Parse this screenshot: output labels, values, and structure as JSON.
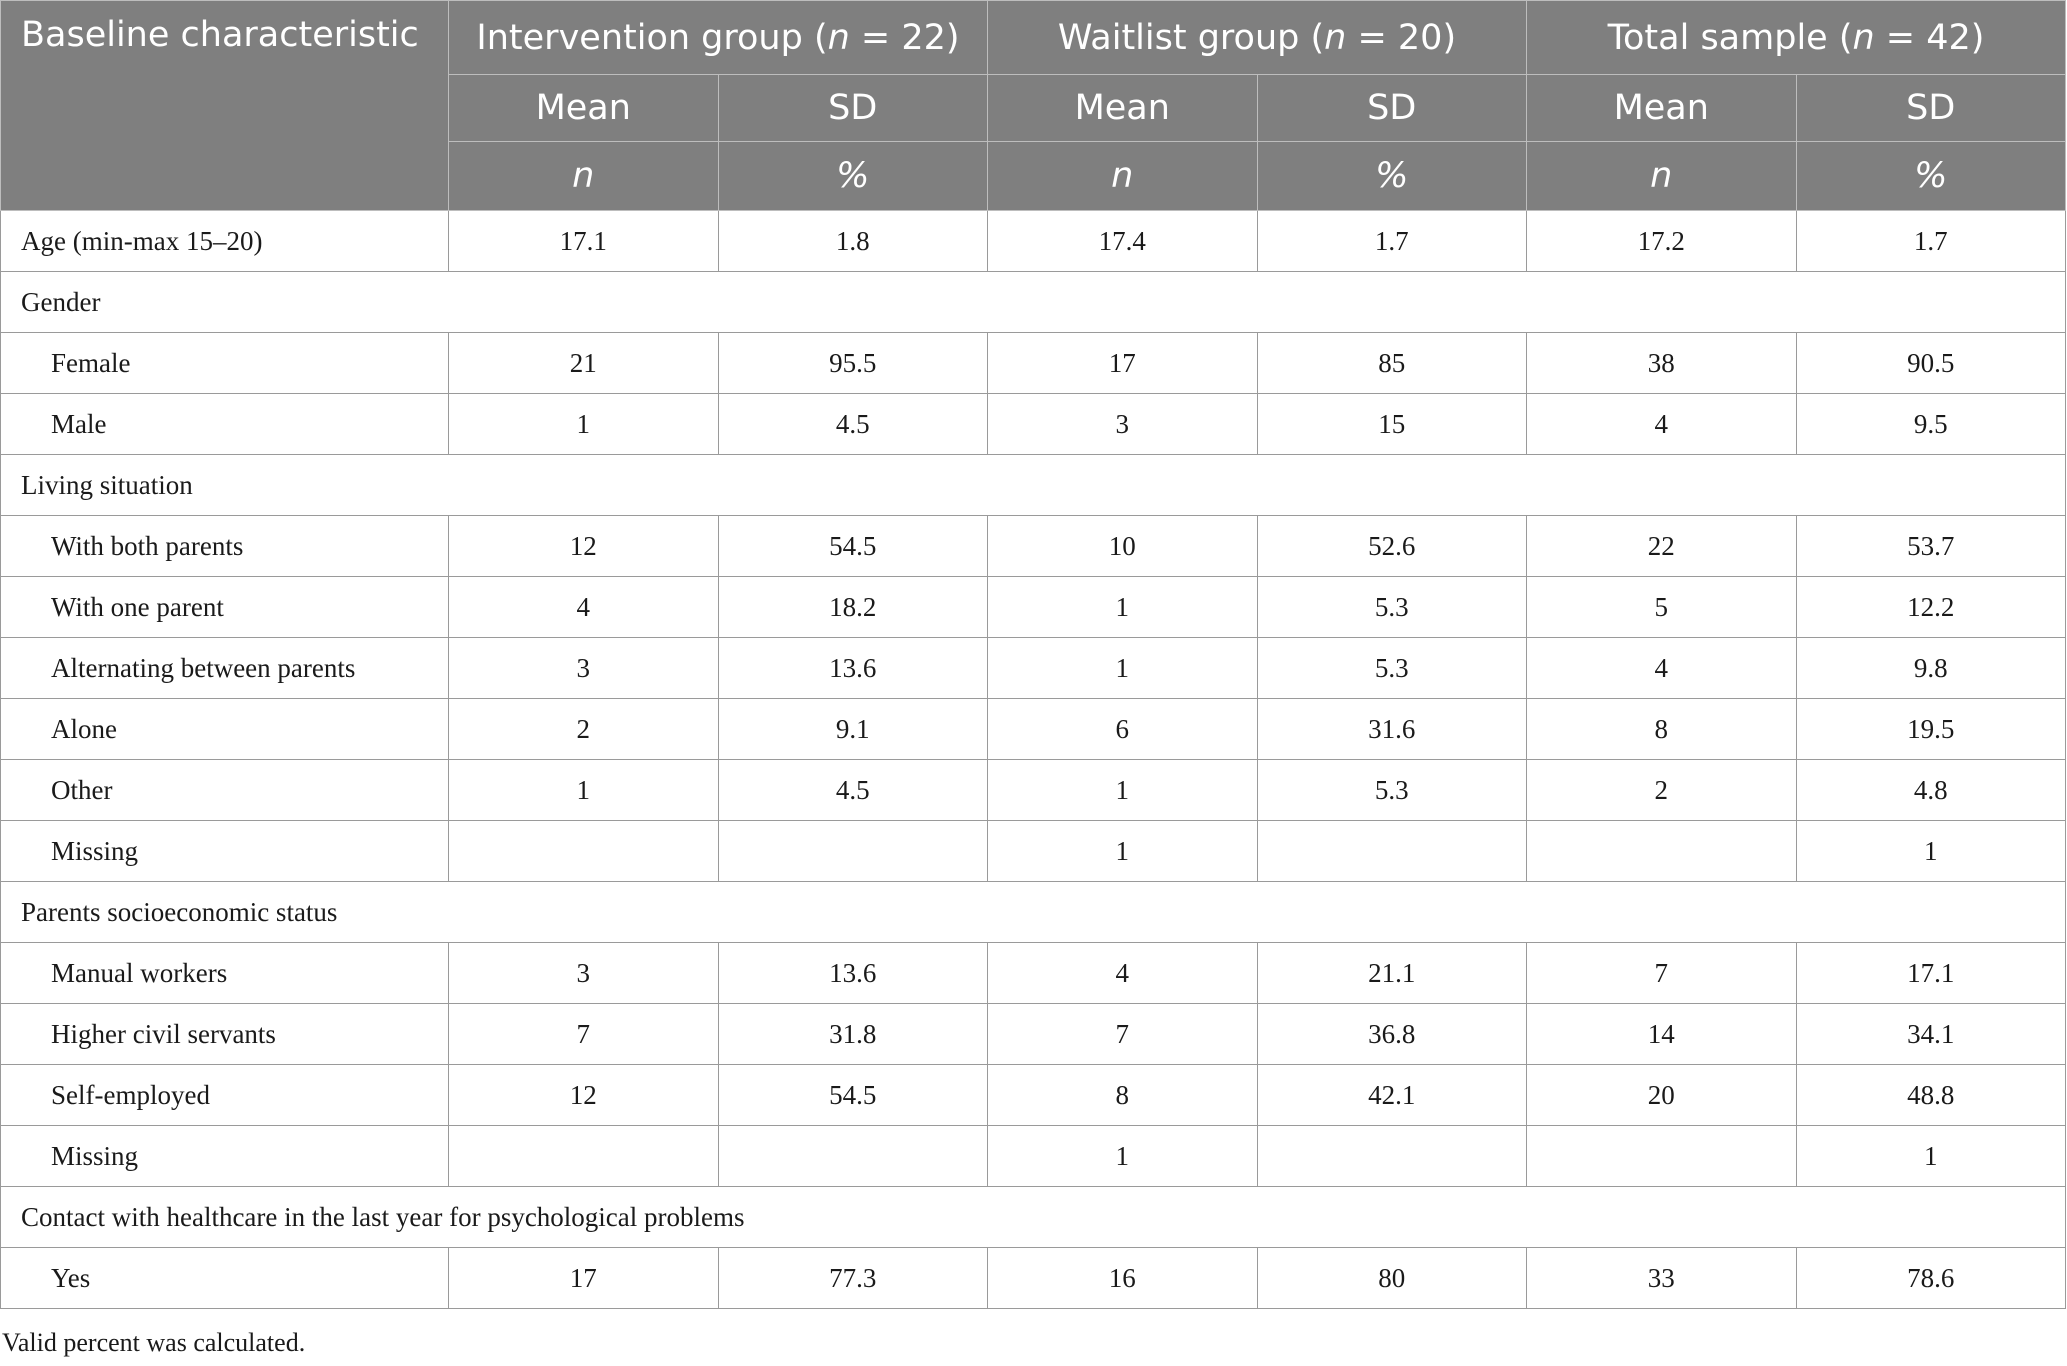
{
  "table": {
    "header": {
      "baseline_label": "Baseline characteristic",
      "groups": [
        {
          "label": "Intervention group",
          "n_text": "n",
          "n_value": " = 22"
        },
        {
          "label": "Waitlist group",
          "n_text": "n",
          "n_value": " = 20"
        },
        {
          "label": "Total sample",
          "n_text": "n",
          "n_value": " = 42"
        }
      ],
      "row2": [
        "Mean",
        "SD",
        "Mean",
        "SD",
        "Mean",
        "SD"
      ],
      "row3": [
        "n",
        "%",
        "n",
        "%",
        "n",
        "%"
      ]
    },
    "rows": [
      {
        "type": "data",
        "label": "Age (min-max 15–20)",
        "indent": false,
        "values": [
          "17.1",
          "1.8",
          "17.4",
          "1.7",
          "17.2",
          "1.7"
        ]
      },
      {
        "type": "section",
        "label": "Gender"
      },
      {
        "type": "data",
        "label": "Female",
        "indent": true,
        "values": [
          "21",
          "95.5",
          "17",
          "85",
          "38",
          "90.5"
        ]
      },
      {
        "type": "data",
        "label": "Male",
        "indent": true,
        "values": [
          "1",
          "4.5",
          "3",
          "15",
          "4",
          "9.5"
        ]
      },
      {
        "type": "section",
        "label": "Living situation"
      },
      {
        "type": "data",
        "label": "With both parents",
        "indent": true,
        "values": [
          "12",
          "54.5",
          "10",
          "52.6",
          "22",
          "53.7"
        ]
      },
      {
        "type": "data",
        "label": "With one parent",
        "indent": true,
        "values": [
          "4",
          "18.2",
          "1",
          "5.3",
          "5",
          "12.2"
        ]
      },
      {
        "type": "data",
        "label": "Alternating between parents",
        "indent": true,
        "values": [
          "3",
          "13.6",
          "1",
          "5.3",
          "4",
          "9.8"
        ]
      },
      {
        "type": "data",
        "label": "Alone",
        "indent": true,
        "values": [
          "2",
          "9.1",
          "6",
          "31.6",
          "8",
          "19.5"
        ]
      },
      {
        "type": "data",
        "label": "Other",
        "indent": true,
        "values": [
          "1",
          "4.5",
          "1",
          "5.3",
          "2",
          "4.8"
        ]
      },
      {
        "type": "data",
        "label": "Missing",
        "indent": true,
        "values": [
          "",
          "",
          "1",
          "",
          "",
          "1"
        ]
      },
      {
        "type": "section",
        "label": "Parents socioeconomic status"
      },
      {
        "type": "data",
        "label": "Manual workers",
        "indent": true,
        "values": [
          "3",
          "13.6",
          "4",
          "21.1",
          "7",
          "17.1"
        ]
      },
      {
        "type": "data",
        "label": "Higher civil servants",
        "indent": true,
        "values": [
          "7",
          "31.8",
          "7",
          "36.8",
          "14",
          "34.1"
        ]
      },
      {
        "type": "data",
        "label": "Self-employed",
        "indent": true,
        "values": [
          "12",
          "54.5",
          "8",
          "42.1",
          "20",
          "48.8"
        ]
      },
      {
        "type": "data",
        "label": "Missing",
        "indent": true,
        "values": [
          "",
          "",
          "1",
          "",
          "",
          "1"
        ]
      },
      {
        "type": "section",
        "label": "Contact with healthcare in the last year for psychological problems"
      },
      {
        "type": "data",
        "label": "Yes",
        "indent": true,
        "values": [
          "17",
          "77.3",
          "16",
          "80",
          "33",
          "78.6"
        ]
      }
    ]
  },
  "footnote": "Valid percent was calculated.",
  "colors": {
    "header_background": "#7f7f7f",
    "header_text": "#ffffff",
    "grid_line": "#9a9a9a"
  }
}
